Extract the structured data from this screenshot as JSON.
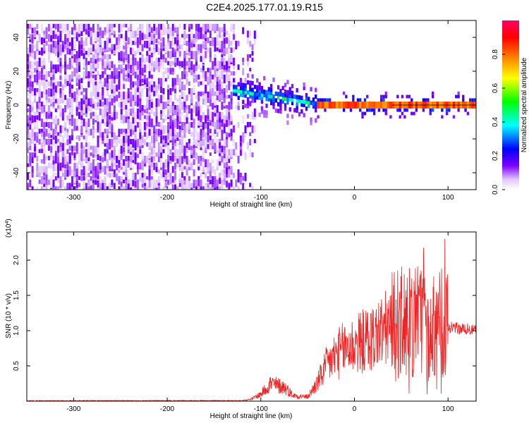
{
  "figure": {
    "title": "C2E4.2025.177.01.19.R15"
  },
  "chart_data": [
    {
      "type": "heatmap",
      "title": "C2E4.2025.177.01.19.R15",
      "xlabel": "Height of straight line (km)",
      "ylabel": "Frequency (Hz)",
      "xlim": [
        -350,
        130
      ],
      "ylim": [
        -50,
        50
      ],
      "x_ticks": [
        -300,
        -200,
        -100,
        0,
        100
      ],
      "x_tick_labels": [
        "-300",
        "-200",
        "-100",
        "0",
        "100"
      ],
      "y_ticks": [
        -40,
        -20,
        0,
        20,
        40
      ],
      "y_tick_labels": [
        "-40",
        "-20",
        "0",
        "20",
        "40"
      ],
      "grid": false,
      "colorbar": {
        "label": "Normalized spectral amplitude",
        "range": [
          0,
          1
        ],
        "ticks": [
          0.0,
          0.2,
          0.4,
          0.6,
          0.8
        ],
        "tick_labels": [
          "0.0",
          "0.2",
          "0.4",
          "0.6",
          "0.8"
        ],
        "colors": [
          "#ffffff",
          "#7f00ff",
          "#0000ff",
          "#00ffff",
          "#00ff00",
          "#ffff00",
          "#ff7f00",
          "#ff0000",
          "#ff0066"
        ]
      },
      "regions": [
        {
          "description": "broadband noise",
          "x_range": [
            -350,
            -130
          ],
          "y_range": [
            -50,
            48
          ],
          "amplitude": 0.1
        },
        {
          "description": "sparse noise",
          "x_range": [
            -130,
            -105
          ],
          "y_range": [
            -50,
            48
          ],
          "amplitude": 0.05
        },
        {
          "description": "signal emergence",
          "x_range": [
            -130,
            -40
          ],
          "center_freq": [
            8,
            0
          ],
          "amplitude": 0.3
        },
        {
          "description": "carrier line",
          "x_range": [
            -40,
            130
          ],
          "center_freq": 0,
          "amplitude": 0.85
        }
      ]
    },
    {
      "type": "line",
      "xlabel": "Height of straight line (km)",
      "ylabel": "SNR (10 * v/v)",
      "y_scale_label": "(x10",
      "y_scale_exp": "4",
      "y_scale_close": ")",
      "xlim": [
        -350,
        130
      ],
      "ylim": [
        0,
        24000
      ],
      "x_ticks": [
        -300,
        -200,
        -100,
        0,
        100
      ],
      "x_tick_labels": [
        "-300",
        "-200",
        "-100",
        "0",
        "100"
      ],
      "y_ticks": [
        5000,
        10000,
        15000,
        20000
      ],
      "y_tick_labels": [
        "0.5",
        "1.0",
        "1.5",
        "2.0"
      ],
      "grid": false,
      "color": "#ee2222",
      "envelope": [
        {
          "x": -350,
          "y": 50
        },
        {
          "x": -120,
          "y": 80
        },
        {
          "x": -110,
          "y": 300
        },
        {
          "x": -100,
          "y": 1000
        },
        {
          "x": -90,
          "y": 2500
        },
        {
          "x": -75,
          "y": 2000
        },
        {
          "x": -65,
          "y": 800
        },
        {
          "x": -50,
          "y": 600
        },
        {
          "x": -40,
          "y": 2500
        },
        {
          "x": -30,
          "y": 5000
        },
        {
          "x": -20,
          "y": 6500
        },
        {
          "x": -10,
          "y": 7500
        },
        {
          "x": 0,
          "y": 8000
        },
        {
          "x": 10,
          "y": 8500
        },
        {
          "x": 20,
          "y": 9000
        },
        {
          "x": 30,
          "y": 10000
        },
        {
          "x": 40,
          "y": 10500
        },
        {
          "x": 50,
          "y": 11000
        },
        {
          "x": 60,
          "y": 11000
        },
        {
          "x": 70,
          "y": 11000
        },
        {
          "x": 80,
          "y": 11000
        },
        {
          "x": 90,
          "y": 11000
        },
        {
          "x": 100,
          "y": 10500
        },
        {
          "x": 110,
          "y": 10300
        },
        {
          "x": 120,
          "y": 10200
        },
        {
          "x": 130,
          "y": 10000
        }
      ]
    }
  ]
}
